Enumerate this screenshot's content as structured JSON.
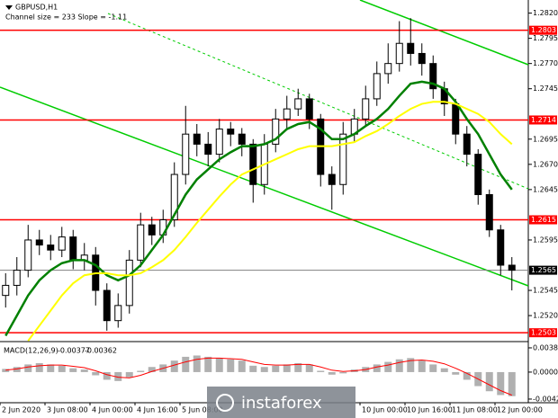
{
  "header": {
    "symbol": "GBPUSD,H1",
    "channel": "Channel size = 233 Slope = -1.11"
  },
  "chart_data": {
    "type": "candlestick",
    "categories": [
      "2 Jun 2020",
      null,
      null,
      null,
      "3 Jun 08:00",
      null,
      null,
      null,
      "4 Jun 00:00",
      null,
      null,
      null,
      "4 Jun 16:00",
      null,
      null,
      null,
      "5 Jun 08:00",
      null,
      null,
      null,
      null,
      null,
      null,
      null,
      null,
      null,
      null,
      null,
      null,
      null,
      null,
      null,
      "10 Jun 00:00",
      null,
      null,
      null,
      "10 Jun 16:00",
      null,
      null,
      null,
      "11 Jun 08:00",
      null,
      null,
      null,
      "12 Jun 00:00",
      null
    ],
    "open": [
      1.254,
      1.255,
      1.2565,
      1.2595,
      1.259,
      1.2585,
      1.2598,
      1.2575,
      1.258,
      1.2545,
      1.2515,
      1.253,
      1.2575,
      1.261,
      1.26,
      1.2615,
      1.266,
      1.27,
      1.269,
      1.268,
      1.2705,
      1.27,
      1.269,
      1.265,
      1.269,
      1.2715,
      1.2725,
      1.2735,
      1.2715,
      1.266,
      1.265,
      1.27,
      1.2715,
      1.2735,
      1.276,
      1.277,
      1.279,
      1.278,
      1.277,
      1.2745,
      1.273,
      1.27,
      1.268,
      1.264,
      1.2605,
      1.257
    ],
    "high": [
      1.2562,
      1.2578,
      1.261,
      1.2605,
      1.26,
      1.2608,
      1.2605,
      1.2592,
      1.2588,
      1.2552,
      1.2542,
      1.2585,
      1.2622,
      1.2618,
      1.2625,
      1.2672,
      1.2728,
      1.271,
      1.2702,
      1.2715,
      1.2712,
      1.2706,
      1.2695,
      1.27,
      1.2725,
      1.2738,
      1.2745,
      1.274,
      1.272,
      1.2668,
      1.2712,
      1.2725,
      1.2748,
      1.2772,
      1.279,
      1.2812,
      1.2815,
      1.279,
      1.2778,
      1.2752,
      1.2735,
      1.2708,
      1.2685,
      1.2645,
      1.261,
      1.2578
    ],
    "low": [
      1.2528,
      1.254,
      1.2558,
      1.258,
      1.2575,
      1.2578,
      1.2566,
      1.2565,
      1.253,
      1.2505,
      1.2508,
      1.2522,
      1.2568,
      1.259,
      1.2592,
      1.2608,
      1.265,
      1.2678,
      1.2668,
      1.2672,
      1.2688,
      1.2678,
      1.2632,
      1.264,
      1.2682,
      1.2705,
      1.2718,
      1.2705,
      1.2648,
      1.2625,
      1.264,
      1.2692,
      1.2708,
      1.2728,
      1.275,
      1.2762,
      1.2768,
      1.2758,
      1.2735,
      1.2718,
      1.269,
      1.2668,
      1.263,
      1.2598,
      1.256,
      1.2545
    ],
    "close": [
      1.255,
      1.2565,
      1.2595,
      1.259,
      1.2585,
      1.2598,
      1.2575,
      1.258,
      1.2545,
      1.2515,
      1.253,
      1.2575,
      1.261,
      1.26,
      1.2615,
      1.266,
      1.27,
      1.269,
      1.268,
      1.2705,
      1.27,
      1.269,
      1.265,
      1.269,
      1.2715,
      1.2725,
      1.2735,
      1.2715,
      1.266,
      1.265,
      1.27,
      1.2715,
      1.2735,
      1.276,
      1.277,
      1.279,
      1.278,
      1.277,
      1.2745,
      1.273,
      1.27,
      1.268,
      1.264,
      1.2605,
      1.257,
      1.2565
    ],
    "moving_averages": [
      {
        "color": "#008000",
        "values": [
          1.25,
          1.252,
          1.254,
          1.2555,
          1.2565,
          1.2572,
          1.2575,
          1.2575,
          1.257,
          1.256,
          1.2555,
          1.256,
          1.257,
          1.2585,
          1.26,
          1.262,
          1.264,
          1.2655,
          1.2665,
          1.2675,
          1.2682,
          1.2688,
          1.2688,
          1.269,
          1.2695,
          1.2705,
          1.271,
          1.2712,
          1.2705,
          1.2695,
          1.2695,
          1.27,
          1.2708,
          1.2715,
          1.2725,
          1.2738,
          1.275,
          1.2752,
          1.275,
          1.2745,
          1.2732,
          1.2715,
          1.27,
          1.268,
          1.266,
          1.2645
        ]
      },
      {
        "color": "#ffff00",
        "values": [
          null,
          null,
          1.2495,
          1.251,
          1.2525,
          1.254,
          1.2552,
          1.256,
          1.2562,
          1.2562,
          1.256,
          1.256,
          1.2562,
          1.2568,
          1.2575,
          1.2585,
          1.2598,
          1.2612,
          1.2625,
          1.2638,
          1.265,
          1.266,
          1.2665,
          1.267,
          1.2675,
          1.268,
          1.2685,
          1.2688,
          1.2688,
          1.2688,
          1.269,
          1.2692,
          1.2698,
          1.2703,
          1.271,
          1.2718,
          1.2725,
          1.273,
          1.2732,
          1.2732,
          1.273,
          1.2725,
          1.272,
          1.2712,
          1.27,
          1.269
        ]
      }
    ],
    "ylim": [
      1.2496,
      1.2833
    ],
    "yticks": [
      {
        "value": 1.282,
        "label": "1.2820"
      },
      1.2795,
      {
        "value": 1.277,
        "label": "1.2770"
      },
      1.2745,
      1.2695,
      {
        "value": 1.267,
        "label": "1.2670"
      },
      1.2645,
      1.2595,
      1.2545,
      {
        "value": 1.252,
        "label": "1.2520"
      }
    ],
    "levels": [
      {
        "value": 1.2803,
        "color": "#ff0000"
      },
      {
        "value": 1.2714,
        "color": "#ff0000"
      },
      {
        "value": 1.2615,
        "color": "#ff0000"
      },
      {
        "value": 1.2503,
        "color": "#ff0000"
      }
    ],
    "current_price": {
      "value": 1.2565,
      "color": "#808080"
    },
    "candle_color": "#000000",
    "macd": {
      "title": "MACD(12,26,9)",
      "histogram": [
        0.0005,
        0.0008,
        0.0012,
        0.0014,
        0.0012,
        0.001,
        0.0006,
        0.0004,
        -0.0005,
        -0.0012,
        -0.0014,
        -0.0008,
        0.0002,
        0.0008,
        0.0012,
        0.0018,
        0.0024,
        0.0026,
        0.0024,
        0.0022,
        0.002,
        0.0018,
        0.001,
        0.0008,
        0.001,
        0.0012,
        0.0014,
        0.0012,
        0.0002,
        -0.0004,
        -0.0002,
        0.0004,
        0.0008,
        0.0012,
        0.0016,
        0.002,
        0.0022,
        0.0018,
        0.0012,
        0.0006,
        -0.0004,
        -0.0012,
        -0.0022,
        -0.003,
        -0.0036,
        -0.00377
      ],
      "signal": [
        0.0003,
        0.0005,
        0.0008,
        0.001,
        0.0011,
        0.0011,
        0.0009,
        0.0007,
        0.0002,
        -0.0004,
        -0.0008,
        -0.0009,
        -0.0005,
        0.0001,
        0.0006,
        0.0011,
        0.0016,
        0.002,
        0.0022,
        0.0022,
        0.0021,
        0.002,
        0.0016,
        0.0012,
        0.0011,
        0.0011,
        0.0012,
        0.0012,
        0.0008,
        0.0003,
        0.0001,
        0.0002,
        0.0004,
        0.0008,
        0.0011,
        0.0015,
        0.0018,
        0.0019,
        0.0017,
        0.0013,
        0.0006,
        -0.0002,
        -0.0011,
        -0.002,
        -0.0029,
        -0.00362
      ],
      "histogram_color": "#b0b0b0",
      "signal_color": "#ff0000",
      "ylim": [
        -0.0048,
        0.0045
      ],
      "yticks": [
        0.0038,
        {
          "value": 0,
          "label": "0.0000"
        },
        -0.00423
      ]
    }
  },
  "watermark": "instaforex"
}
